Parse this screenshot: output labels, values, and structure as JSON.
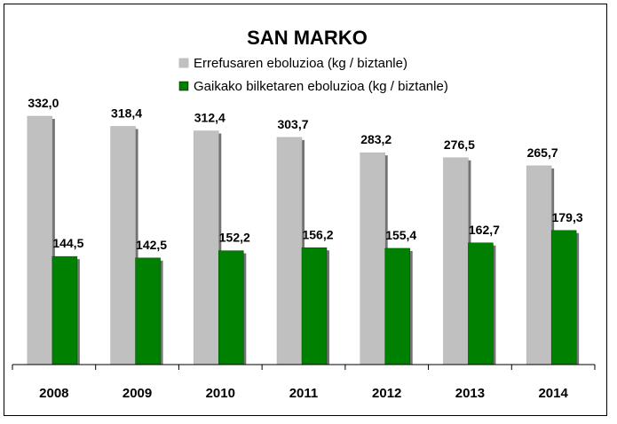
{
  "chart_data": {
    "type": "bar",
    "title": "SAN MARKO",
    "categories": [
      "2008",
      "2009",
      "2010",
      "2011",
      "2012",
      "2013",
      "2014"
    ],
    "series": [
      {
        "name": "Errefusaren eboluzioa (kg / biztanle)",
        "color": "#c0c0c0",
        "values": [
          332.0,
          318.4,
          312.4,
          303.7,
          283.2,
          276.5,
          265.7
        ],
        "labels": [
          "332,0",
          "318,4",
          "312,4",
          "303,7",
          "283,2",
          "276,5",
          "265,7"
        ]
      },
      {
        "name": "Gaikako bilketaren eboluzioa (kg / biztanle)",
        "color": "#008000",
        "values": [
          144.5,
          142.5,
          152.2,
          156.2,
          155.4,
          162.7,
          179.3
        ],
        "labels": [
          "144,5",
          "142,5",
          "152,2",
          "156,2",
          "155,4",
          "162,7",
          "179,3"
        ]
      }
    ],
    "ylim": [
      0,
      332
    ],
    "grid": false,
    "legend_position": "top-center"
  }
}
